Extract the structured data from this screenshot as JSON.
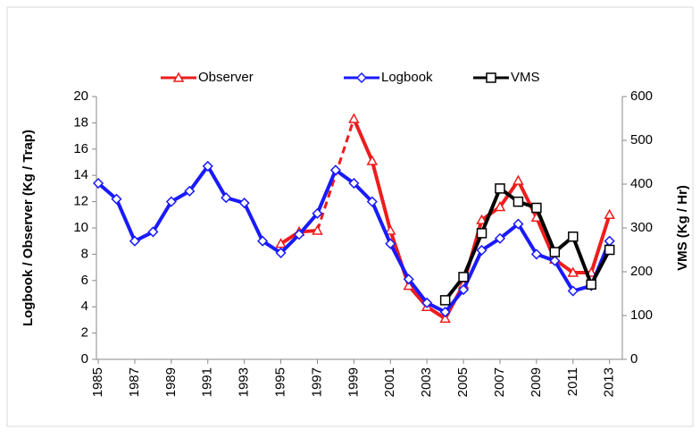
{
  "chart_data": {
    "type": "line",
    "y_label": "Logbook / Observer (Kg / Trap)",
    "y2_label": "VMS (Kg / Hr)",
    "x": [
      1985,
      1986,
      1987,
      1988,
      1989,
      1990,
      1991,
      1992,
      1993,
      1994,
      1995,
      1996,
      1997,
      1998,
      1999,
      2000,
      2001,
      2002,
      2003,
      2004,
      2005,
      2006,
      2007,
      2008,
      2009,
      2010,
      2011,
      2012,
      2013
    ],
    "xlim": [
      1984.9,
      2013.7
    ],
    "xticks": [
      1985,
      1987,
      1989,
      1991,
      1993,
      1995,
      1997,
      1999,
      2001,
      2003,
      2005,
      2007,
      2009,
      2011,
      2013
    ],
    "ylim": [
      0,
      20
    ],
    "yticks": [
      0,
      2,
      4,
      6,
      8,
      10,
      12,
      14,
      16,
      18,
      20
    ],
    "y2lim": [
      0,
      600
    ],
    "y2ticks": [
      0,
      100,
      200,
      300,
      400,
      500,
      600
    ],
    "gap_style": "dashed",
    "legend": "top",
    "series": [
      {
        "name": "Observer",
        "color": "#ee1c1c",
        "marker": "triangle",
        "values": [
          null,
          null,
          null,
          null,
          null,
          null,
          null,
          null,
          null,
          null,
          8.8,
          9.7,
          9.8,
          null,
          18.3,
          15.1,
          9.8,
          5.6,
          4.0,
          3.1,
          5.7,
          10.6,
          11.6,
          13.6,
          10.8,
          7.6,
          6.6,
          6.6,
          11.0
        ]
      },
      {
        "name": "Logbook",
        "color": "#1a1aff",
        "marker": "diamond",
        "values": [
          13.4,
          12.2,
          9.0,
          9.7,
          12.0,
          12.8,
          14.7,
          12.3,
          11.9,
          9.0,
          8.1,
          9.5,
          11.1,
          14.4,
          13.4,
          12.0,
          8.8,
          6.1,
          4.3,
          3.6,
          5.3,
          8.3,
          9.2,
          10.3,
          8.0,
          7.5,
          5.2,
          5.6,
          9.0
        ]
      },
      {
        "name": "VMS",
        "color": "#000000",
        "marker": "square",
        "axis": "y2",
        "values": [
          null,
          null,
          null,
          null,
          null,
          null,
          null,
          null,
          null,
          null,
          null,
          null,
          null,
          null,
          null,
          null,
          null,
          null,
          null,
          135,
          188,
          288,
          390,
          360,
          346,
          245,
          280,
          171,
          250
        ]
      }
    ]
  }
}
